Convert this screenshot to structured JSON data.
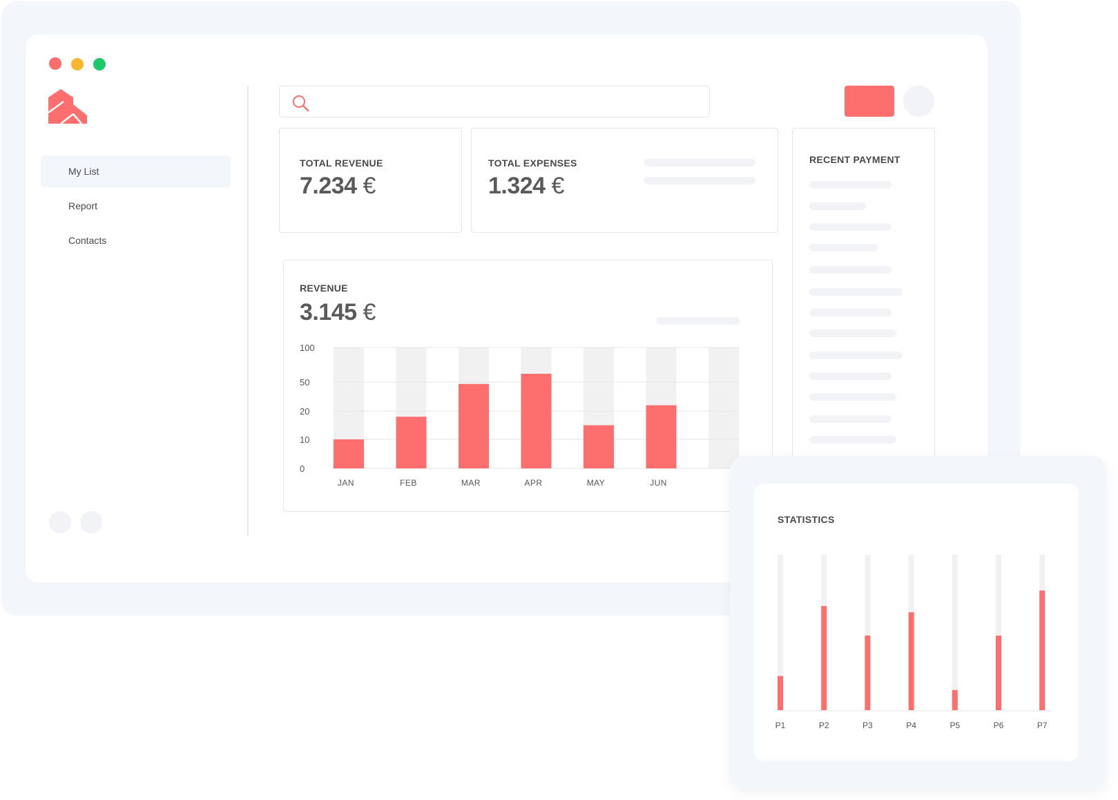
{
  "window": {
    "traffic_lights": [
      {
        "name": "close",
        "color": "#fd6c6c"
      },
      {
        "name": "minimize",
        "color": "#f7b731"
      },
      {
        "name": "maximize",
        "color": "#1ec96b"
      }
    ]
  },
  "colors": {
    "accent": "#fd6f6f",
    "track": "#f1f1f1",
    "panel": "#f3f6fa"
  },
  "sidebar": {
    "logo_icon": "house-logo-icon",
    "items": [
      {
        "label": "My List",
        "active": true
      },
      {
        "label": "Report",
        "active": false
      },
      {
        "label": "Contacts",
        "active": false
      }
    ]
  },
  "header": {
    "search": {
      "placeholder": "",
      "icon": "search-icon"
    }
  },
  "cards": {
    "total_revenue": {
      "label": "TOTAL REVENUE",
      "value": "7.234",
      "unit": "€"
    },
    "total_expenses": {
      "label": "TOTAL EXPENSES",
      "value": "1.324",
      "unit": "€"
    },
    "recent_payment": {
      "label": "RECENT PAYMENT"
    }
  },
  "revenue": {
    "label": "REVENUE",
    "value": "3.145",
    "unit": "€"
  },
  "statistics": {
    "label": "STATISTICS"
  },
  "chart_data": [
    {
      "type": "bar",
      "title": "REVENUE",
      "categories": [
        "JAN",
        "FEB",
        "MAR",
        "APR",
        "MAY",
        "JUN",
        ""
      ],
      "y_ticks": [
        "100",
        "50",
        "20",
        "10",
        "0"
      ],
      "values": [
        10,
        18,
        48,
        62,
        15,
        26,
        null
      ],
      "ylim": [
        0,
        100
      ],
      "grid": true
    },
    {
      "type": "bar",
      "title": "STATISTICS",
      "categories": [
        "P1",
        "P2",
        "P3",
        "P4",
        "P5",
        "P6",
        "P7"
      ],
      "values": [
        0.22,
        0.67,
        0.48,
        0.63,
        0.13,
        0.48,
        0.77
      ],
      "ylim": [
        0,
        1
      ]
    }
  ]
}
